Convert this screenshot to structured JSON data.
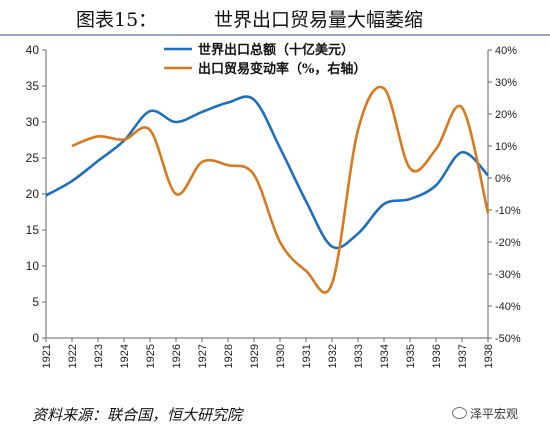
{
  "figure": {
    "label": "图表15：",
    "title": "世界出口贸易量大幅萎缩"
  },
  "source": "资料来源：联合国，恒大研究院",
  "watermark": "泽平宏观",
  "colors": {
    "blue": "#1f6fbf",
    "orange": "#d9791e",
    "axis": "#666666"
  },
  "chart_data": {
    "type": "line",
    "categories": [
      "1921",
      "1922",
      "1923",
      "1924",
      "1925",
      "1926",
      "1927",
      "1928",
      "1929",
      "1930",
      "1931",
      "1932",
      "1933",
      "1934",
      "1935",
      "1936",
      "1937",
      "1938"
    ],
    "y_left": {
      "min": 0,
      "max": 40,
      "ticks": [
        "0",
        "5",
        "10",
        "15",
        "20",
        "25",
        "30",
        "35",
        "40"
      ]
    },
    "y_right": {
      "min": -50,
      "max": 40,
      "ticks": [
        "-50%",
        "-40%",
        "-30%",
        "-20%",
        "-10%",
        "0%",
        "10%",
        "20%",
        "30%",
        "40%"
      ]
    },
    "grid": false,
    "legend_position": "top-center",
    "series": [
      {
        "name": "世界出口总额（十亿美元）",
        "axis": "left",
        "color": "#1f6fbf",
        "values": [
          19.8,
          21.8,
          24.6,
          27.4,
          31.5,
          30.0,
          31.4,
          32.7,
          33.1,
          26.4,
          19.0,
          12.7,
          14.5,
          18.6,
          19.3,
          21.2,
          25.8,
          22.6
        ]
      },
      {
        "name": "出口贸易变动率（%，右轴）",
        "axis": "right",
        "color": "#d9791e",
        "values": [
          null,
          10,
          13,
          12,
          15,
          -5,
          5,
          4,
          1,
          -20,
          -29,
          -33,
          15,
          28,
          3,
          9,
          22,
          -11
        ]
      }
    ]
  }
}
